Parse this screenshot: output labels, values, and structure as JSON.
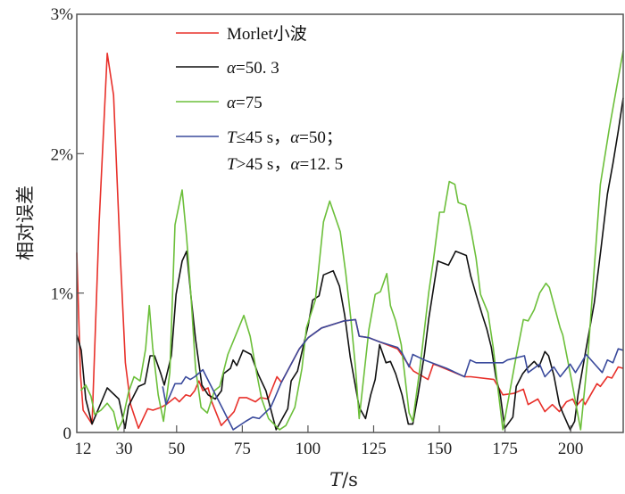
{
  "chart_data": {
    "type": "line",
    "title": "",
    "xlabel": "T/s",
    "ylabel": "相对误差",
    "xlim": [
      12,
      220
    ],
    "ylim": [
      0,
      3
    ],
    "x_ticks": [
      12,
      30,
      50,
      75,
      100,
      125,
      150,
      175,
      200
    ],
    "x_tick_labels": [
      "12",
      "30",
      "50",
      "75",
      "100",
      "125",
      "150",
      "175",
      "200"
    ],
    "y_ticks": [
      0,
      1,
      2,
      3
    ],
    "y_tick_labels": [
      "0",
      "1%",
      "2%",
      "3%"
    ],
    "grid": false,
    "legend_position": "top-center",
    "series": [
      {
        "name": "Morlet小波",
        "color": "#e8302a",
        "points": [
          [
            12,
            1.29
          ],
          [
            13.4,
            0.42
          ],
          [
            14.4,
            0.16
          ],
          [
            17.8,
            0.06
          ],
          [
            20.5,
            1.5
          ],
          [
            23.6,
            2.72
          ],
          [
            26,
            2.42
          ],
          [
            28.5,
            1.3
          ],
          [
            30.5,
            0.5
          ],
          [
            32.5,
            0.2
          ],
          [
            35.5,
            0.03
          ],
          [
            39,
            0.17
          ],
          [
            41,
            0.16
          ],
          [
            44,
            0.18
          ],
          [
            46,
            0.2
          ],
          [
            49.4,
            0.25
          ],
          [
            51,
            0.22
          ],
          [
            53.5,
            0.27
          ],
          [
            55.2,
            0.26
          ],
          [
            56.9,
            0.3
          ],
          [
            58.5,
            0.37
          ],
          [
            60,
            0.3
          ],
          [
            62,
            0.32
          ],
          [
            63.4,
            0.22
          ],
          [
            67,
            0.05
          ],
          [
            70.5,
            0.12
          ],
          [
            71.9,
            0.15
          ],
          [
            73.9,
            0.25
          ],
          [
            76.6,
            0.25
          ],
          [
            80,
            0.22
          ],
          [
            82,
            0.25
          ],
          [
            84.8,
            0.24
          ],
          [
            88.2,
            0.4
          ],
          [
            89.9,
            0.36
          ],
          [
            93.3,
            0.48
          ],
          [
            96.7,
            0.6
          ],
          [
            100.1,
            0.68
          ],
          [
            105.2,
            0.75
          ],
          [
            113.7,
            0.8
          ],
          [
            118.1,
            0.81
          ],
          [
            119.5,
            0.69
          ],
          [
            123.2,
            0.68
          ],
          [
            127.3,
            0.65
          ],
          [
            134.1,
            0.6
          ],
          [
            138.5,
            0.48
          ],
          [
            140.2,
            0.44
          ],
          [
            145.7,
            0.38
          ],
          [
            147.7,
            0.49
          ],
          [
            149.4,
            0.48
          ],
          [
            159.6,
            0.4
          ],
          [
            162,
            0.4
          ],
          [
            170.8,
            0.38
          ],
          [
            174.2,
            0.27
          ],
          [
            178.3,
            0.28
          ],
          [
            182,
            0.31
          ],
          [
            183.8,
            0.2
          ],
          [
            187.5,
            0.24
          ],
          [
            190.2,
            0.15
          ],
          [
            193,
            0.2
          ],
          [
            195.7,
            0.15
          ],
          [
            198.4,
            0.22
          ],
          [
            200.8,
            0.24
          ],
          [
            202.1,
            0.19
          ],
          [
            204.5,
            0.24
          ],
          [
            205.5,
            0.2
          ],
          [
            210,
            0.35
          ],
          [
            211.3,
            0.33
          ],
          [
            214,
            0.4
          ],
          [
            215.7,
            0.39
          ],
          [
            218.1,
            0.47
          ],
          [
            220,
            0.46
          ]
        ]
      },
      {
        "name": "α=50. 3",
        "color": "#111111",
        "points": [
          [
            12,
            0.7
          ],
          [
            13.7,
            0.59
          ],
          [
            15.4,
            0.24
          ],
          [
            17.8,
            0.06
          ],
          [
            23.6,
            0.32
          ],
          [
            28,
            0.24
          ],
          [
            30.4,
            0.03
          ],
          [
            31.7,
            0.19
          ],
          [
            35.5,
            0.33
          ],
          [
            37.9,
            0.35
          ],
          [
            39.9,
            0.55
          ],
          [
            41.6,
            0.55
          ],
          [
            44,
            0.42
          ],
          [
            45.3,
            0.34
          ],
          [
            48,
            0.55
          ],
          [
            49.8,
            0.99
          ],
          [
            52.1,
            1.23
          ],
          [
            53.8,
            1.3
          ],
          [
            55.5,
            0.97
          ],
          [
            57.2,
            0.67
          ],
          [
            59.6,
            0.34
          ],
          [
            62,
            0.27
          ],
          [
            64.7,
            0.24
          ],
          [
            67.1,
            0.3
          ],
          [
            67.8,
            0.42
          ],
          [
            70.5,
            0.46
          ],
          [
            71.5,
            0.52
          ],
          [
            72.9,
            0.48
          ],
          [
            75.3,
            0.59
          ],
          [
            78.3,
            0.56
          ],
          [
            81,
            0.42
          ],
          [
            84,
            0.3
          ],
          [
            87.9,
            0.02
          ],
          [
            92.3,
            0.17
          ],
          [
            93.6,
            0.37
          ],
          [
            96,
            0.44
          ],
          [
            100.1,
            0.77
          ],
          [
            101.8,
            0.95
          ],
          [
            104.2,
            0.98
          ],
          [
            105.9,
            1.13
          ],
          [
            109.6,
            1.16
          ],
          [
            112,
            1.05
          ],
          [
            114,
            0.84
          ],
          [
            116.1,
            0.54
          ],
          [
            119.5,
            0.18
          ],
          [
            121.9,
            0.1
          ],
          [
            123.9,
            0.27
          ],
          [
            125.6,
            0.38
          ],
          [
            127.3,
            0.63
          ],
          [
            129.7,
            0.5
          ],
          [
            131.4,
            0.51
          ],
          [
            133.4,
            0.42
          ],
          [
            135.8,
            0.27
          ],
          [
            138.2,
            0.06
          ],
          [
            139.9,
            0.06
          ],
          [
            141.9,
            0.27
          ],
          [
            144.3,
            0.56
          ],
          [
            146,
            0.82
          ],
          [
            149.4,
            1.23
          ],
          [
            153.5,
            1.2
          ],
          [
            156.2,
            1.3
          ],
          [
            160.3,
            1.27
          ],
          [
            162,
            1.12
          ],
          [
            164,
            0.99
          ],
          [
            166.4,
            0.84
          ],
          [
            168.1,
            0.74
          ],
          [
            169.8,
            0.61
          ],
          [
            171.5,
            0.4
          ],
          [
            173.2,
            0.27
          ],
          [
            174.9,
            0.03
          ],
          [
            178,
            0.11
          ],
          [
            179.3,
            0.33
          ],
          [
            181.7,
            0.42
          ],
          [
            183.4,
            0.46
          ],
          [
            186.1,
            0.51
          ],
          [
            187.9,
            0.47
          ],
          [
            190.2,
            0.58
          ],
          [
            191.6,
            0.55
          ],
          [
            193.6,
            0.41
          ],
          [
            195.7,
            0.2
          ],
          [
            197,
            0.14
          ],
          [
            199.8,
            0.02
          ],
          [
            201.5,
            0.08
          ],
          [
            202.8,
            0.27
          ],
          [
            205.5,
            0.56
          ],
          [
            209,
            0.93
          ],
          [
            211.6,
            1.33
          ],
          [
            214,
            1.71
          ],
          [
            216.1,
            1.93
          ],
          [
            218.1,
            2.16
          ],
          [
            220,
            2.4
          ]
        ]
      },
      {
        "name": "α=75",
        "color": "#6cbf3a",
        "points": [
          [
            13.5,
            0.3
          ],
          [
            15.4,
            0.34
          ],
          [
            17.4,
            0.26
          ],
          [
            18.8,
            0.13
          ],
          [
            21.2,
            0.16
          ],
          [
            23.6,
            0.21
          ],
          [
            26,
            0.15
          ],
          [
            27.6,
            0.02
          ],
          [
            29.3,
            0.08
          ],
          [
            31.7,
            0.29
          ],
          [
            33.8,
            0.4
          ],
          [
            36.1,
            0.37
          ],
          [
            38.2,
            0.6
          ],
          [
            39.6,
            0.91
          ],
          [
            40.9,
            0.61
          ],
          [
            43,
            0.27
          ],
          [
            45,
            0.08
          ],
          [
            47.4,
            0.43
          ],
          [
            49.4,
            1.49
          ],
          [
            52.1,
            1.74
          ],
          [
            53.8,
            1.4
          ],
          [
            55.5,
            0.97
          ],
          [
            57.2,
            0.46
          ],
          [
            59.3,
            0.18
          ],
          [
            61.7,
            0.14
          ],
          [
            64.4,
            0.3
          ],
          [
            66.4,
            0.33
          ],
          [
            69.5,
            0.56
          ],
          [
            75.6,
            0.84
          ],
          [
            78,
            0.69
          ],
          [
            80.4,
            0.43
          ],
          [
            82.4,
            0.24
          ],
          [
            85,
            0.1
          ],
          [
            89.2,
            0.02
          ],
          [
            91.6,
            0.05
          ],
          [
            95,
            0.18
          ],
          [
            97.7,
            0.46
          ],
          [
            99.4,
            0.75
          ],
          [
            102.8,
            0.95
          ],
          [
            104.2,
            1.2
          ],
          [
            105.9,
            1.51
          ],
          [
            108.3,
            1.66
          ],
          [
            112.3,
            1.44
          ],
          [
            114.4,
            1.14
          ],
          [
            116.4,
            0.8
          ],
          [
            118.1,
            0.46
          ],
          [
            119.5,
            0.1
          ],
          [
            123.2,
            0.74
          ],
          [
            125.6,
            0.99
          ],
          [
            127.6,
            1.01
          ],
          [
            130,
            1.14
          ],
          [
            131.4,
            0.91
          ],
          [
            133.4,
            0.8
          ],
          [
            135.5,
            0.63
          ],
          [
            138.5,
            0.14
          ],
          [
            139.9,
            0.08
          ],
          [
            142.6,
            0.46
          ],
          [
            146,
            1.01
          ],
          [
            147.7,
            1.23
          ],
          [
            150.1,
            1.58
          ],
          [
            151.8,
            1.58
          ],
          [
            153.8,
            1.8
          ],
          [
            155.9,
            1.78
          ],
          [
            157.2,
            1.65
          ],
          [
            160,
            1.63
          ],
          [
            162,
            1.46
          ],
          [
            164,
            1.25
          ],
          [
            165.7,
            0.99
          ],
          [
            168.5,
            0.86
          ],
          [
            170.5,
            0.61
          ],
          [
            172.2,
            0.33
          ],
          [
            174.2,
            0.02
          ],
          [
            176.6,
            0.27
          ],
          [
            179,
            0.52
          ],
          [
            182,
            0.81
          ],
          [
            183.8,
            0.8
          ],
          [
            186.1,
            0.88
          ],
          [
            188.2,
            1.0
          ],
          [
            190.6,
            1.07
          ],
          [
            191.9,
            1.04
          ],
          [
            196,
            0.75
          ],
          [
            197,
            0.7
          ],
          [
            200.4,
            0.37
          ],
          [
            202.8,
            0.12
          ],
          [
            203.8,
            0.02
          ],
          [
            206.6,
            0.56
          ],
          [
            209,
            1.18
          ],
          [
            211.3,
            1.78
          ],
          [
            214.7,
            2.18
          ],
          [
            220,
            2.74
          ]
        ]
      },
      {
        "name": "T≤45 s，α=50；",
        "name_line2": "T>45 s，α=12. 5",
        "color": "#3a4a9c",
        "points": [
          [
            44.7,
            0.33
          ],
          [
            46,
            0.2
          ],
          [
            49.4,
            0.35
          ],
          [
            51.8,
            0.35
          ],
          [
            53.5,
            0.4
          ],
          [
            55.2,
            0.38
          ],
          [
            56.9,
            0.4
          ],
          [
            60,
            0.45
          ],
          [
            61.3,
            0.4
          ],
          [
            67.8,
            0.16
          ],
          [
            71.5,
            0.02
          ],
          [
            76.3,
            0.08
          ],
          [
            79,
            0.11
          ],
          [
            81.4,
            0.1
          ],
          [
            85.8,
            0.18
          ],
          [
            87.2,
            0.24
          ],
          [
            89.9,
            0.36
          ],
          [
            93.3,
            0.48
          ],
          [
            96.7,
            0.6
          ],
          [
            100.1,
            0.68
          ],
          [
            105.2,
            0.75
          ],
          [
            113.7,
            0.8
          ],
          [
            118.1,
            0.81
          ],
          [
            119.5,
            0.69
          ],
          [
            123.2,
            0.68
          ],
          [
            127.3,
            0.65
          ],
          [
            134.1,
            0.61
          ],
          [
            135.8,
            0.57
          ],
          [
            138.5,
            0.47
          ],
          [
            139.9,
            0.56
          ],
          [
            144.3,
            0.52
          ],
          [
            152.8,
            0.46
          ],
          [
            159.6,
            0.4
          ],
          [
            161.7,
            0.52
          ],
          [
            164,
            0.5
          ],
          [
            174.2,
            0.5
          ],
          [
            175.9,
            0.52
          ],
          [
            182.4,
            0.55
          ],
          [
            183.8,
            0.43
          ],
          [
            188.2,
            0.49
          ],
          [
            190.2,
            0.4
          ],
          [
            193.6,
            0.47
          ],
          [
            196,
            0.4
          ],
          [
            199.8,
            0.49
          ],
          [
            201.8,
            0.43
          ],
          [
            203.8,
            0.49
          ],
          [
            205.9,
            0.56
          ],
          [
            212,
            0.43
          ],
          [
            214,
            0.52
          ],
          [
            216.1,
            0.5
          ],
          [
            218.1,
            0.6
          ],
          [
            220,
            0.59
          ]
        ]
      }
    ]
  }
}
